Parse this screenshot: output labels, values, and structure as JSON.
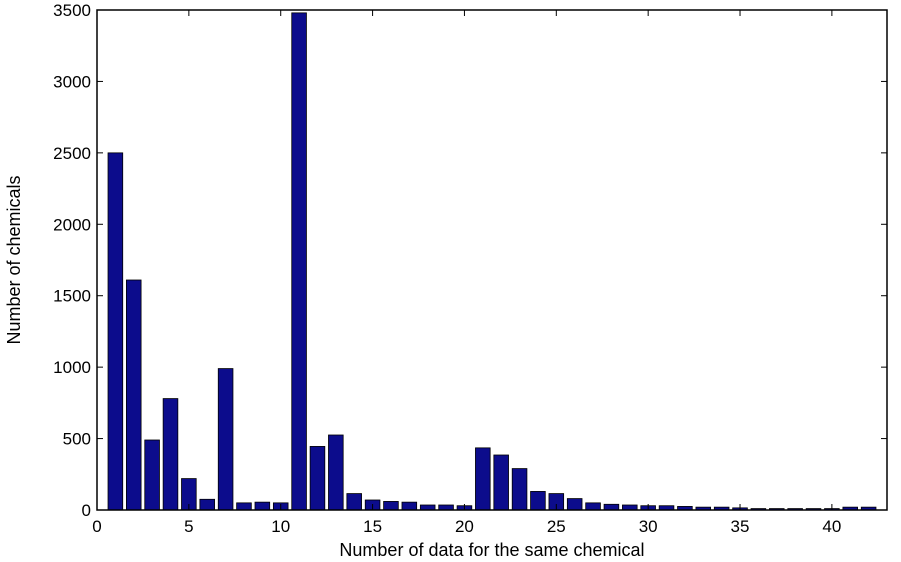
{
  "chart_data": {
    "type": "bar",
    "title": "",
    "xlabel": "Number of data for the same chemical",
    "ylabel": "Number of chemicals",
    "xlim": [
      0,
      43
    ],
    "ylim": [
      0,
      3500
    ],
    "x_ticks": [
      0,
      5,
      10,
      15,
      20,
      25,
      30,
      35,
      40
    ],
    "y_ticks": [
      0,
      500,
      1000,
      1500,
      2000,
      2500,
      3000,
      3500
    ],
    "x_tick_labels": [
      "0",
      "5",
      "10",
      "15",
      "20",
      "25",
      "30",
      "35",
      "40"
    ],
    "y_tick_labels": [
      "0",
      "500",
      "1000",
      "1500",
      "2000",
      "2500",
      "3000",
      "3500"
    ],
    "grid": false,
    "bar_color": "#0c0c8c",
    "x": [
      1,
      2,
      3,
      4,
      5,
      6,
      7,
      8,
      9,
      10,
      11,
      12,
      13,
      14,
      15,
      16,
      17,
      18,
      19,
      20,
      21,
      22,
      23,
      24,
      25,
      26,
      27,
      28,
      29,
      30,
      31,
      32,
      33,
      34,
      35,
      36,
      37,
      38,
      39,
      40,
      41,
      42
    ],
    "values": [
      2500,
      1610,
      490,
      780,
      220,
      75,
      990,
      50,
      55,
      50,
      3480,
      445,
      525,
      115,
      70,
      60,
      55,
      35,
      35,
      30,
      435,
      385,
      290,
      130,
      115,
      80,
      50,
      40,
      35,
      30,
      30,
      25,
      20,
      20,
      15,
      10,
      10,
      10,
      10,
      10,
      20,
      20
    ]
  }
}
